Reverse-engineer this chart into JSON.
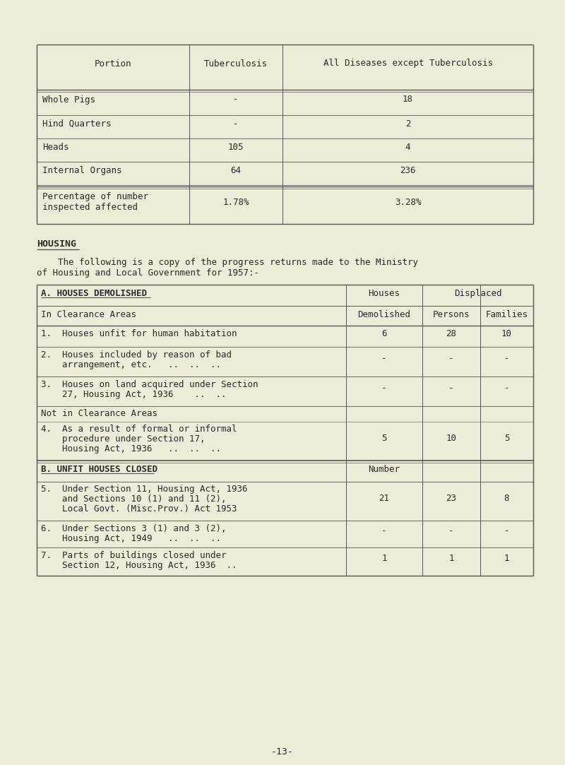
{
  "bg_color": "#edecd8",
  "text_color": "#2a2a2a",
  "page_number": "-13-",
  "t1_headers": [
    "Portion",
    "Tuberculosis",
    "All Diseases except Tuberculosis"
  ],
  "t1_rows": [
    [
      "Whole Pigs",
      "-",
      "18"
    ],
    [
      "Hind Quarters",
      "-",
      "2"
    ],
    [
      "Heads",
      "105",
      "4"
    ],
    [
      "Internal Organs",
      "64",
      "236"
    ]
  ],
  "t1_pct": [
    "Percentage of number",
    "inspected affected",
    "1.78%",
    "3.28%"
  ],
  "housing_heading": "HOUSING",
  "intro_line1": "    The following is a copy of the progress returns made to the Ministry",
  "intro_line2": "of Housing and Local Government for 1957:-",
  "t2_h1": [
    "A. HOUSES DEMOLISHED",
    "Houses",
    "Displaced"
  ],
  "t2_h2": [
    "In Clearance Areas",
    "Demolished",
    "Persons",
    "Families"
  ],
  "t2_rows_a": [
    [
      "1.  Houses unfit for human habitation",
      "6",
      "28",
      "10"
    ],
    [
      "2.  Houses included by reason of bad",
      "arrangement, etc.   ..  ..  ..",
      "-",
      "-",
      "-"
    ],
    [
      "3.  Houses on land acquired under Section",
      "27, Housing Act, 1936    ..  ..",
      "-",
      "-",
      "-"
    ],
    [
      "Not in Clearance Areas",
      "",
      "",
      "",
      ""
    ],
    [
      "4.  As a result of formal or informal",
      "procedure under Section 17,",
      "Housing Act, 1936   ..  ..  ..",
      "5",
      "10",
      "5"
    ]
  ],
  "t2_b_header": [
    "B. UNFIT HOUSES CLOSED",
    "Number"
  ],
  "t2_rows_b": [
    [
      "5.  Under Section 11, Housing Act, 1936",
      "and Sections 10 (1) and 11 (2),",
      "Local Govt. (Misc.Prov.) Act 1953",
      "21",
      "23",
      "8"
    ],
    [
      "6.  Under Sections 3 (1) and 3 (2),",
      "Housing Act, 1949   ..  ..  ..",
      "-",
      "-",
      "-"
    ],
    [
      "7.  Parts of buildings closed under",
      "Section 12, Housing Act, 1936  ..",
      "1",
      "1",
      "1"
    ]
  ]
}
